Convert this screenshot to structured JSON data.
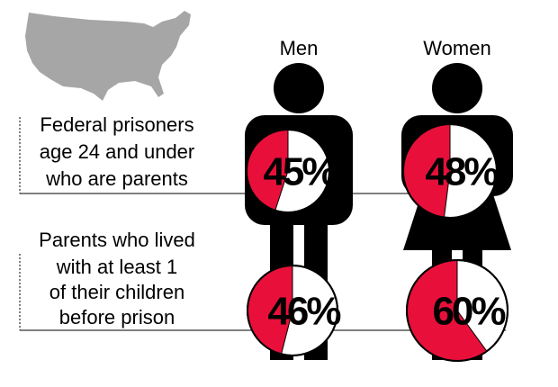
{
  "chart_data": {
    "type": "pie",
    "columns": [
      "Men",
      "Women"
    ],
    "rows": [
      {
        "label": [
          "Federal prisoners",
          "age 24 and under",
          "who are parents"
        ],
        "values": [
          45,
          48
        ],
        "value_labels": [
          "45%",
          "48%"
        ]
      },
      {
        "label": [
          "Parents who lived",
          "with at least 1",
          "of their children",
          "before prison"
        ],
        "values": [
          46,
          60
        ],
        "value_labels": [
          "46%",
          "60%"
        ]
      }
    ],
    "color": "#e8103a"
  }
}
